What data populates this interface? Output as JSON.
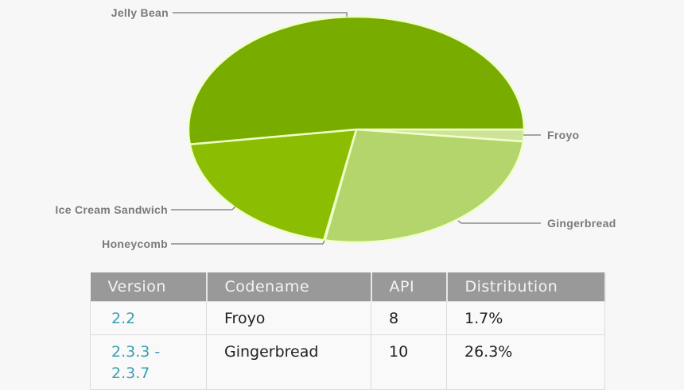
{
  "chart_data": {
    "type": "pie",
    "title": "",
    "categories": [
      "Froyo",
      "Gingerbread",
      "Honeycomb",
      "Ice Cream Sandwich",
      "Jelly Bean"
    ],
    "values": [
      1.7,
      26.3,
      0.1,
      19.8,
      52.1
    ],
    "unit": "%",
    "colors": [
      "#cde39a",
      "#b3d56c",
      "#a4ce43",
      "#8bbd03",
      "#78ad00"
    ],
    "legend": "leader-line labels outside slices",
    "start_angle": "3 o'clock, clockwise"
  },
  "labels": {
    "jelly_bean": "Jelly Bean",
    "froyo": "Froyo",
    "ice_cream_sandwich": "Ice Cream Sandwich",
    "gingerbread": "Gingerbread",
    "honeycomb": "Honeycomb"
  },
  "table": {
    "headers": [
      "Version",
      "Codename",
      "API",
      "Distribution"
    ],
    "rows": [
      {
        "version": "2.2",
        "codename": "Froyo",
        "api": "8",
        "distribution": "1.7%"
      },
      {
        "version": "2.3.3 -\n2.3.7",
        "version_line1": "2.3.3 -",
        "version_line2": "2.3.7",
        "codename": "Gingerbread",
        "api": "10",
        "distribution": "26.3%"
      }
    ]
  }
}
